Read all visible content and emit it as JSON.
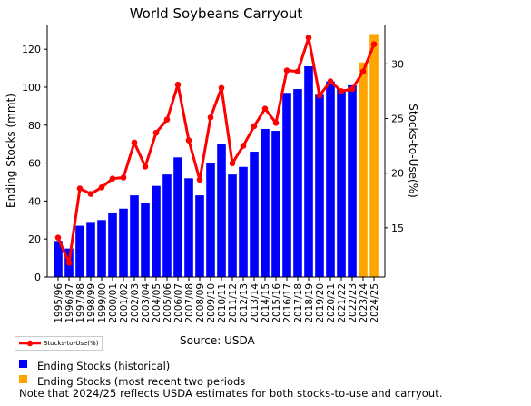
{
  "chart_data": {
    "type": "bar+line",
    "title": "World Soybeans Carryout",
    "ylabel": "Ending Stocks (mmt)",
    "y2label": "Stocks-to-Use(%)",
    "ylim": [
      0,
      133
    ],
    "y2lim": [
      10.5,
      33.6
    ],
    "yticks": [
      0,
      20,
      40,
      60,
      80,
      100,
      120
    ],
    "y2ticks": [
      15,
      20,
      25,
      30
    ],
    "categories": [
      "1995/96",
      "1996/97",
      "1997/98",
      "1998/99",
      "1999/00",
      "2000/01",
      "2001/02",
      "2002/03",
      "2003/04",
      "2004/05",
      "2005/06",
      "2006/07",
      "2007/08",
      "2008/09",
      "2009/10",
      "2010/11",
      "2011/12",
      "2012/13",
      "2013/14",
      "2014/15",
      "2015/16",
      "2016/17",
      "2017/18",
      "2018/19",
      "2019/20",
      "2020/21",
      "2021/22",
      "2022/23",
      "2023/24",
      "2024/25"
    ],
    "series": [
      {
        "name": "Ending Stocks (historical)",
        "kind": "bar",
        "color": "#0000ff",
        "values": [
          19,
          15,
          27,
          29,
          30,
          34,
          36,
          43,
          39,
          48,
          54,
          63,
          52,
          43,
          60,
          70,
          54,
          58,
          66,
          78,
          77,
          97,
          99,
          111,
          96,
          103,
          99,
          101,
          null,
          null
        ]
      },
      {
        "name": "Ending Stocks (most recent two periods",
        "kind": "bar",
        "color": "#ffa500",
        "values": [
          null,
          null,
          null,
          null,
          null,
          null,
          null,
          null,
          null,
          null,
          null,
          null,
          null,
          null,
          null,
          null,
          null,
          null,
          null,
          null,
          null,
          null,
          null,
          null,
          null,
          null,
          null,
          null,
          113,
          128
        ]
      },
      {
        "name": "Stocks-to-Use(%)",
        "kind": "line",
        "axis": "right",
        "color": "#ff0000",
        "values": [
          14.1,
          11.8,
          18.6,
          18.1,
          18.7,
          19.5,
          19.6,
          22.8,
          20.6,
          23.7,
          24.9,
          28.1,
          23.0,
          19.4,
          25.1,
          27.8,
          20.9,
          22.5,
          24.3,
          25.9,
          24.6,
          29.4,
          29.3,
          32.4,
          27.1,
          28.4,
          27.5,
          27.7,
          29.3,
          31.8
        ]
      }
    ]
  },
  "legend": {
    "line_label": "Stocks-to-Use(%)",
    "historical_label": "Ending Stocks (historical)",
    "recent_label": "Ending Stocks (most recent two periods"
  },
  "source": "Source: USDA",
  "note": "Note that 2024/25 reflects USDA estimates for both stocks-to-use and carryout.",
  "colors": {
    "historical": "#0000ff",
    "recent": "#ffa500",
    "line": "#ff0000"
  }
}
